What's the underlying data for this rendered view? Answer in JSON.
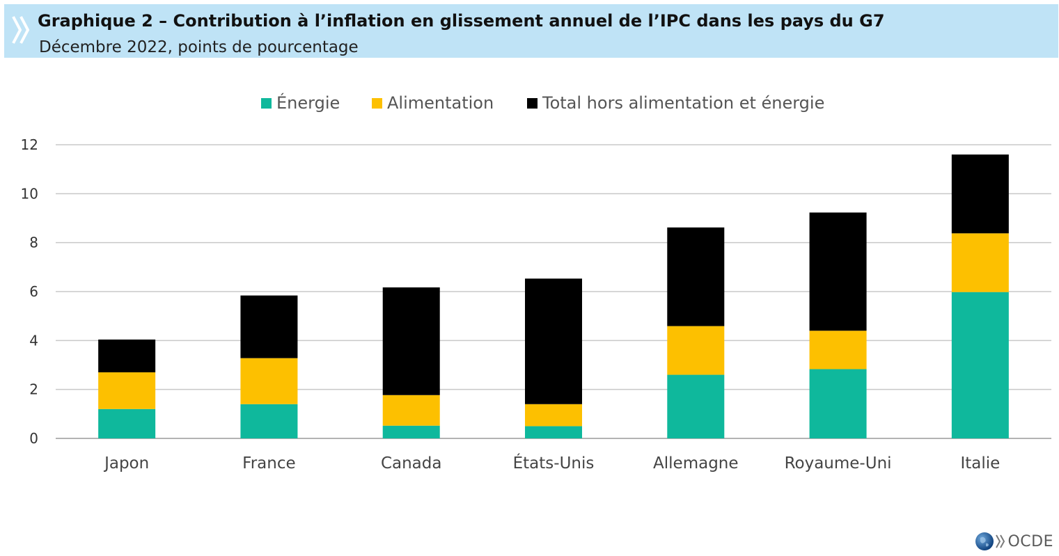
{
  "header": {
    "title": "Graphique 2 – Contribution à l’inflation en glissement annuel de l’IPC dans les pays du G7",
    "subtitle": "Décembre 2022, points de pourcentage",
    "icon": "double-chevron-right-icon"
  },
  "logo": {
    "text": "OCDE",
    "icon": "globe-icon"
  },
  "chart_data": {
    "type": "bar",
    "stacked": true,
    "title": "",
    "xlabel": "",
    "ylabel": "",
    "ylim": [
      0,
      12
    ],
    "yticks": [
      0,
      2,
      4,
      6,
      8,
      10,
      12
    ],
    "grid": true,
    "legend_position": "top",
    "categories": [
      "Japon",
      "France",
      "Canada",
      "États-Unis",
      "Allemagne",
      "Royaume-Uni",
      "Italie"
    ],
    "series": [
      {
        "name": "Énergie",
        "color": "#0fb89c",
        "values": [
          1.2,
          1.4,
          0.52,
          0.5,
          2.6,
          2.83,
          5.98
        ]
      },
      {
        "name": "Alimentation",
        "color": "#fdc000",
        "values": [
          1.5,
          1.88,
          1.25,
          0.9,
          1.99,
          1.57,
          2.4
        ]
      },
      {
        "name": "Total hors alimentation et énergie",
        "color": "#000000",
        "values": [
          1.34,
          2.56,
          4.4,
          5.13,
          4.03,
          4.83,
          3.22
        ]
      }
    ]
  }
}
